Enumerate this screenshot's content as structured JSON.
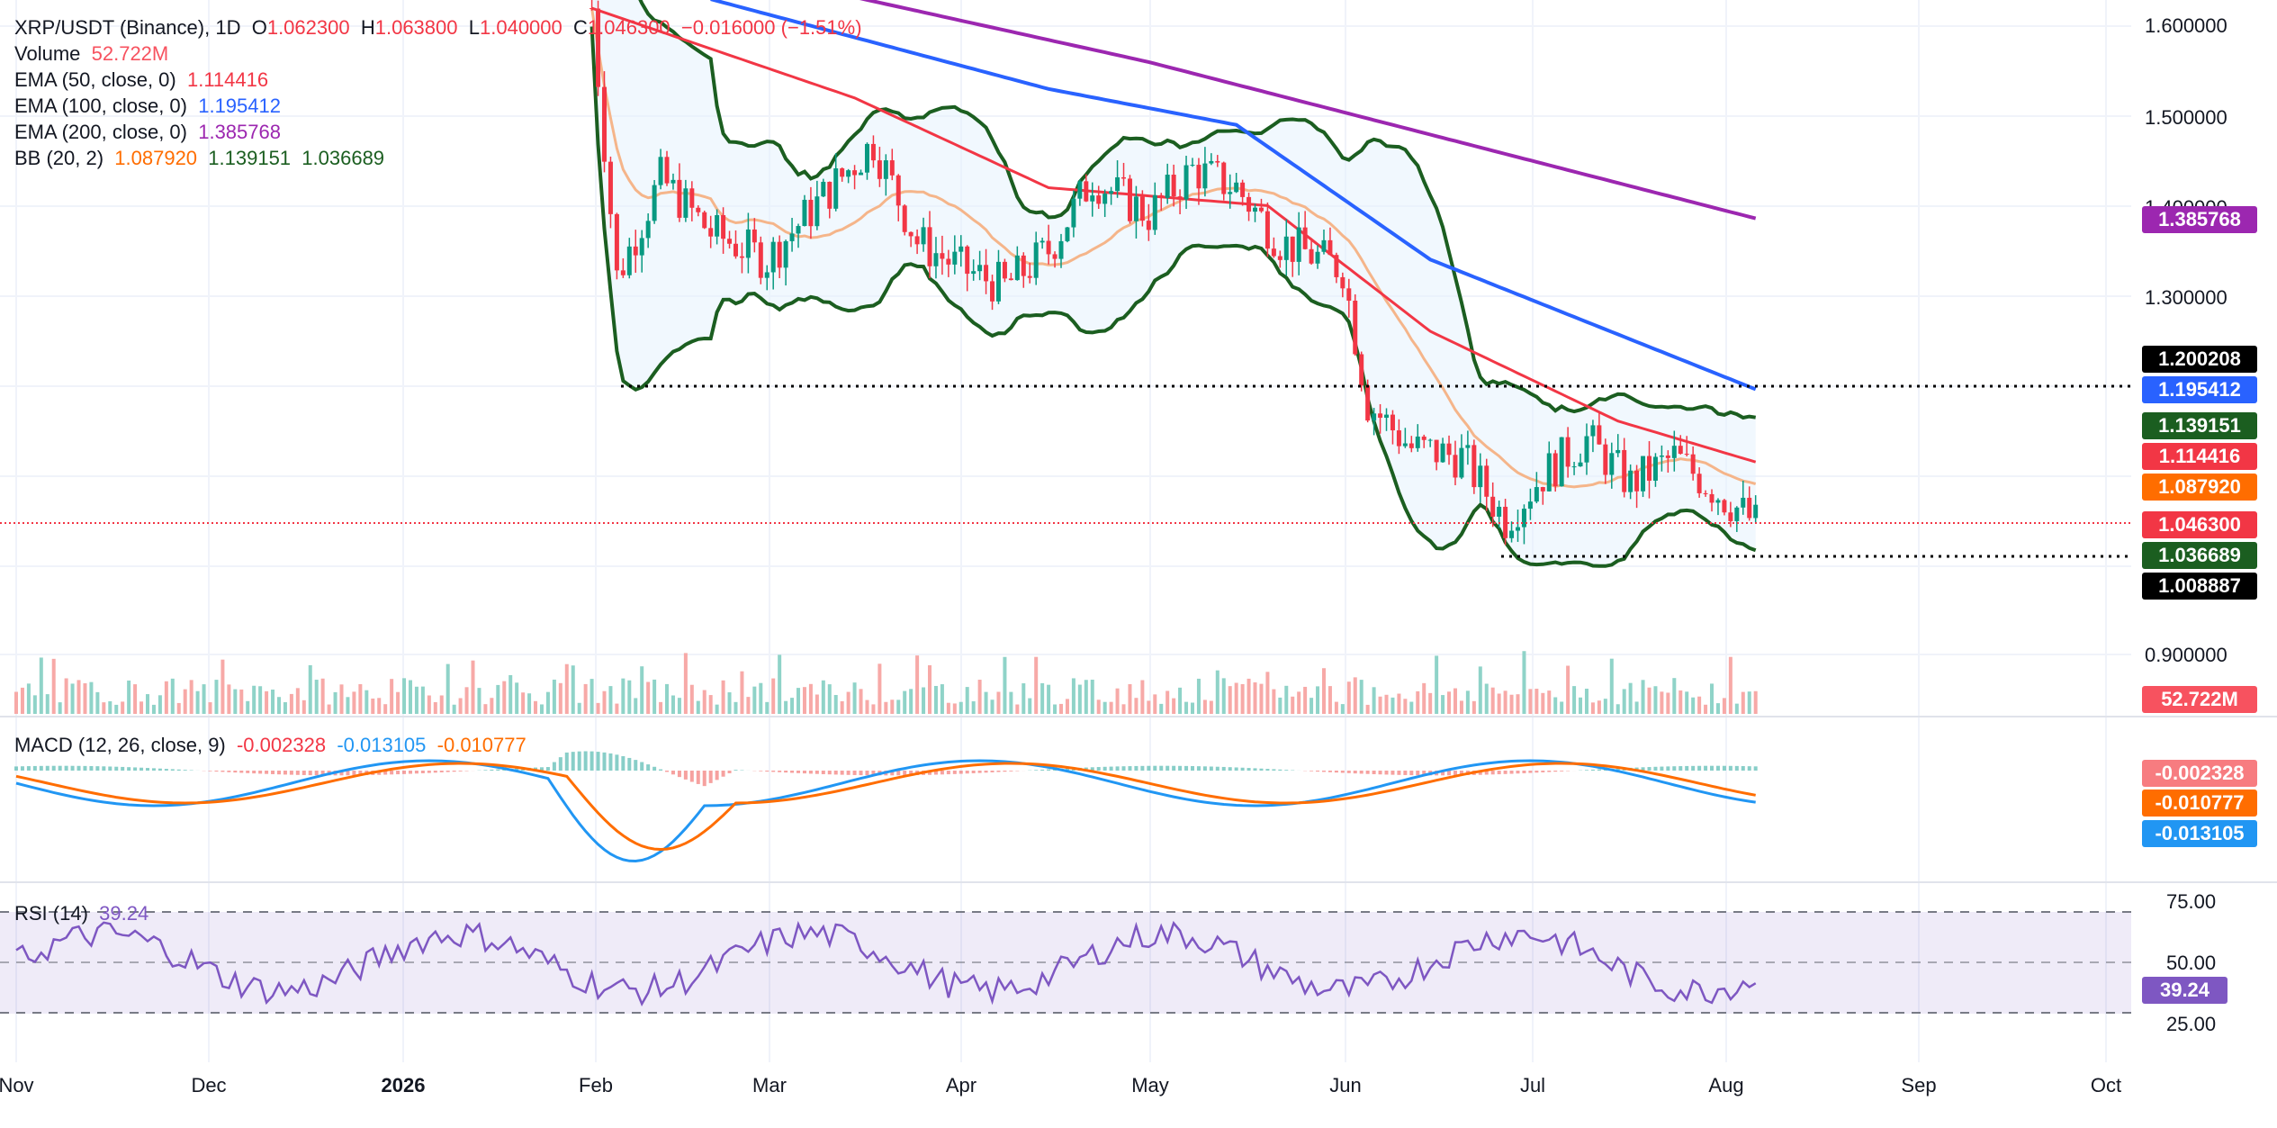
{
  "header": {
    "symbol": "XRP/USDT (Binance), 1D",
    "o_label": "O",
    "o": "1.062300",
    "h_label": "H",
    "h": "1.063800",
    "l_label": "L",
    "l": "1.040000",
    "c_label": "C",
    "c": "1.046300",
    "change": "−0.016000 (−1.51%)"
  },
  "legend": {
    "volume": {
      "label": "Volume",
      "value": "52.722M"
    },
    "ema50": {
      "label": "EMA (50, close, 0)",
      "value": "1.114416",
      "color": "#f23645"
    },
    "ema100": {
      "label": "EMA (100, close, 0)",
      "value": "1.195412",
      "color": "#2962ff"
    },
    "ema200": {
      "label": "EMA (200, close, 0)",
      "value": "1.385768",
      "color": "#9c27b0"
    },
    "bb": {
      "label": "BB (20, 2)",
      "basis": "1.087920",
      "upper": "1.139151",
      "lower": "1.036689"
    },
    "macd": {
      "label": "MACD (12, 26, close, 9)",
      "hist": "-0.002328",
      "macd": "-0.013105",
      "signal": "-0.010777"
    },
    "rsi": {
      "label": "RSI (14)",
      "value": "39.24"
    }
  },
  "price_axis": [
    "1.600000",
    "1.500000",
    "1.400000",
    "1.300000",
    "0.900000"
  ],
  "rsi_axis": [
    "75.00",
    "50.00",
    "25.00"
  ],
  "badges": {
    "level_high": {
      "text": "1.200208",
      "color": "#000000"
    },
    "ema100": {
      "text": "1.195412",
      "color": "#2962ff"
    },
    "bb_upper": {
      "text": "1.139151",
      "color": "#1b5e20"
    },
    "ema50": {
      "text": "1.114416",
      "color": "#f23645"
    },
    "bb_basis": {
      "text": "1.087920",
      "color": "#ff6d00"
    },
    "last": {
      "text": "1.046300",
      "color": "#f23645"
    },
    "bb_lower": {
      "text": "1.036689",
      "color": "#1b5e20"
    },
    "level_low": {
      "text": "1.008887",
      "color": "#000000"
    },
    "ema200": {
      "text": "1.385768",
      "color": "#9c27b0"
    },
    "volume": {
      "text": "52.722M",
      "color": "#f7525f"
    },
    "macd_hist": {
      "text": "-0.002328",
      "color": "#f77c80"
    },
    "macd_signal": {
      "text": "-0.010777",
      "color": "#ff6d00"
    },
    "macd_line": {
      "text": "-0.013105",
      "color": "#2196f3"
    },
    "rsi": {
      "text": "39.24",
      "color": "#7e57c2"
    }
  },
  "time_axis": [
    "Nov",
    "Dec",
    "2026",
    "Feb",
    "Mar",
    "Apr",
    "May",
    "Jun",
    "Jul",
    "Aug",
    "Sep",
    "Oct"
  ],
  "chart_data": {
    "type": "candlestick",
    "y_range": [
      0.86,
      1.62
    ],
    "horizontal_levels": [
      1.200208,
      1.008887
    ],
    "last_price": 1.0463,
    "close_path": [
      [
        "2026-02-01",
        1.62
      ],
      [
        "2026-02-05",
        1.32
      ],
      [
        "2026-02-12",
        1.43
      ],
      [
        "2026-02-20",
        1.37
      ],
      [
        "2026-03-01",
        1.34
      ],
      [
        "2026-03-10",
        1.41
      ],
      [
        "2026-03-18",
        1.47
      ],
      [
        "2026-03-25",
        1.36
      ],
      [
        "2026-04-01",
        1.33
      ],
      [
        "2026-04-08",
        1.31
      ],
      [
        "2026-04-15",
        1.35
      ],
      [
        "2026-04-22",
        1.43
      ],
      [
        "2026-05-01",
        1.39
      ],
      [
        "2026-05-08",
        1.44
      ],
      [
        "2026-05-15",
        1.42
      ],
      [
        "2026-05-22",
        1.36
      ],
      [
        "2026-06-01",
        1.33
      ],
      [
        "2026-06-05",
        1.18
      ],
      [
        "2026-06-12",
        1.13
      ],
      [
        "2026-06-20",
        1.12
      ],
      [
        "2026-06-27",
        1.05
      ],
      [
        "2026-07-03",
        1.1
      ],
      [
        "2026-07-10",
        1.14
      ],
      [
        "2026-07-17",
        1.09
      ],
      [
        "2026-07-24",
        1.12
      ],
      [
        "2026-07-31",
        1.08
      ],
      [
        "2026-08-06",
        1.0463
      ]
    ],
    "ema200_path": [
      [
        "2026-03-10",
        1.64
      ],
      [
        "2026-05-01",
        1.56
      ],
      [
        "2026-08-06",
        1.385768
      ]
    ],
    "ema100_path": [
      [
        "2026-02-20",
        1.63
      ],
      [
        "2026-04-15",
        1.53
      ],
      [
        "2026-05-15",
        1.49
      ],
      [
        "2026-06-15",
        1.34
      ],
      [
        "2026-08-06",
        1.195412
      ]
    ],
    "ema50_path": [
      [
        "2026-02-01",
        1.62
      ],
      [
        "2026-03-15",
        1.52
      ],
      [
        "2026-04-15",
        1.42
      ],
      [
        "2026-05-20",
        1.4
      ],
      [
        "2026-06-15",
        1.26
      ],
      [
        "2026-07-15",
        1.16
      ],
      [
        "2026-08-06",
        1.114416
      ]
    ],
    "bb_upper_last": 1.139151,
    "bb_basis_last": 1.08792,
    "bb_lower_last": 1.036689,
    "macd_last": {
      "hist": -0.002328,
      "macd": -0.013105,
      "signal": -0.010777
    },
    "rsi_last": 39.24,
    "rsi_bands": [
      75,
      50,
      25
    ]
  }
}
